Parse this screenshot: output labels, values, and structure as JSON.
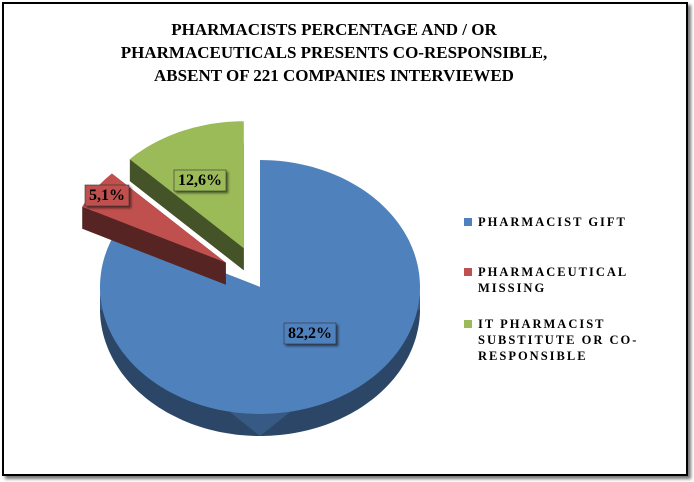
{
  "chart_data": {
    "type": "pie",
    "title": "PHARMACISTS PERCENTAGE AND / OR PHARMACEUTICALS PRESENTS CO-RESPONSIBLE, ABSENT OF 221 COMPANIES INTERVIEWED",
    "categories": [
      "PHARMACIST GIFT",
      "PHARMACEUTICAL MISSING",
      "IT PHARMACIST SUBSTITUTE OR CO-RESPONSIBLE"
    ],
    "values": [
      82.2,
      5.1,
      12.6
    ],
    "value_labels": [
      "82,2%",
      "5,1%",
      "12,6%"
    ],
    "colors": [
      "#4f81bd",
      "#c0504d",
      "#9bbb59"
    ],
    "exploded": [
      false,
      true,
      true
    ],
    "legend": "right"
  }
}
